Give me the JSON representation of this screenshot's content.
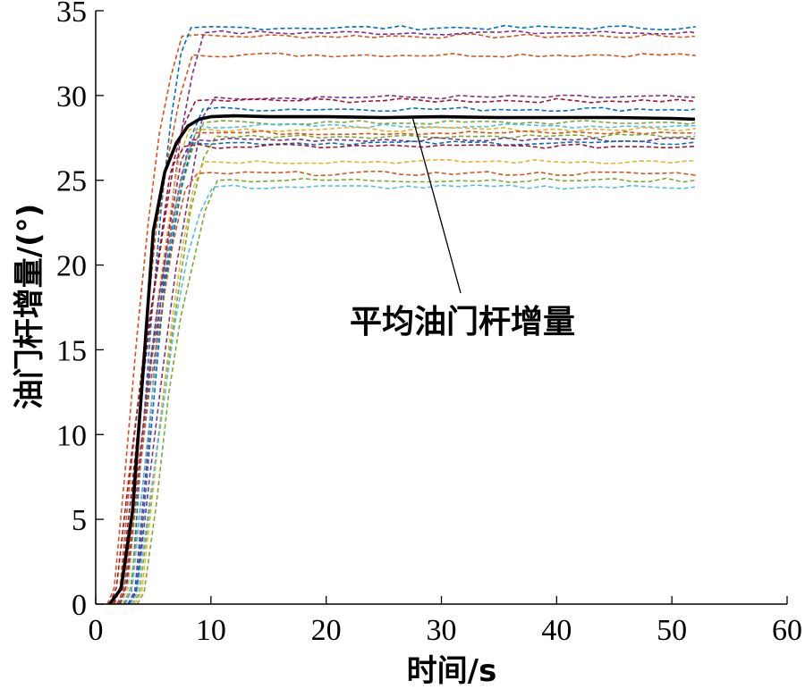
{
  "chart_data": {
    "type": "line",
    "xlabel": "时间/s",
    "ylabel": "油门杆增量/(°)",
    "xlim": [
      0,
      60
    ],
    "ylim": [
      0,
      35
    ],
    "xticks": [
      0,
      10,
      20,
      30,
      40,
      50,
      60
    ],
    "yticks": [
      0,
      5,
      10,
      15,
      20,
      25,
      30,
      35
    ],
    "grid": false,
    "annotation": {
      "text": "平均油门杆增量",
      "arrow_to": [
        27.5,
        28.7
      ]
    },
    "mean": {
      "name": "平均油门杆增量",
      "color": "#000000",
      "x": [
        1.2,
        2.2,
        3.2,
        4.2,
        5.0,
        6.0,
        7.0,
        8.0,
        9.0,
        10.0,
        12.0,
        15.0,
        20.0,
        25.0,
        30.0,
        35.0,
        40.0,
        45.0,
        50.0,
        52.0
      ],
      "y": [
        0,
        0.9,
        5.5,
        14.5,
        22.0,
        25.5,
        27.2,
        28.2,
        28.6,
        28.75,
        28.8,
        28.75,
        28.75,
        28.7,
        28.75,
        28.7,
        28.7,
        28.7,
        28.65,
        28.6
      ]
    },
    "trials": [
      {
        "color": "#D95319",
        "final": 33.5,
        "start": 1.0
      },
      {
        "color": "#7E2F8E",
        "final": 33.7,
        "start": 2.8
      },
      {
        "color": "#0072BD",
        "final": 34.0,
        "start": 2.5
      },
      {
        "color": "#D95319",
        "final": 32.4,
        "start": 1.5
      },
      {
        "color": "#7E2F8E",
        "final": 29.9,
        "start": 3.0
      },
      {
        "color": "#A2142F",
        "final": 29.7,
        "start": 1.2
      },
      {
        "color": "#0072BD",
        "final": 29.2,
        "start": 2.0
      },
      {
        "color": "#77AC30",
        "final": 28.4,
        "start": 2.4
      },
      {
        "color": "#4DBEEE",
        "final": 28.2,
        "start": 2.6
      },
      {
        "color": "#EDB120",
        "final": 28.0,
        "start": 2.2
      },
      {
        "color": "#D95319",
        "final": 27.8,
        "start": 1.8
      },
      {
        "color": "#77AC30",
        "final": 27.6,
        "start": 3.2
      },
      {
        "color": "#7E2F8E",
        "final": 27.4,
        "start": 2.1
      },
      {
        "color": "#0072BD",
        "final": 27.2,
        "start": 2.9
      },
      {
        "color": "#A2142F",
        "final": 27.0,
        "start": 1.6
      },
      {
        "color": "#EDB120",
        "final": 26.1,
        "start": 3.4
      },
      {
        "color": "#D95319",
        "final": 25.4,
        "start": 1.9
      },
      {
        "color": "#77AC30",
        "final": 25.0,
        "start": 3.6
      },
      {
        "color": "#4DBEEE",
        "final": 24.6,
        "start": 3.0
      }
    ]
  }
}
